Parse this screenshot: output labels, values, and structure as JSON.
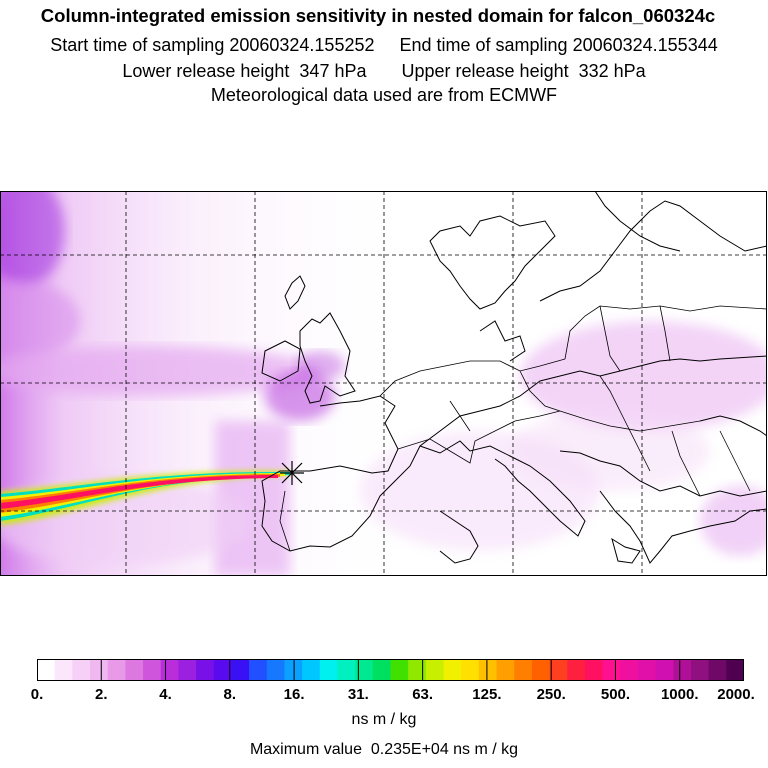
{
  "title": {
    "line1": "Column-integrated emission sensitivity in nested domain for falcon_060324c",
    "line2": "Start time of sampling 20060324.155252     End time of sampling 20060324.155344",
    "line3": "Lower release height  347 hPa       Upper release height  332 hPa",
    "line4": "Meteorological data used are from ECMWF"
  },
  "map": {
    "release_marker": "release-point-x-icon",
    "grid": "dashed-lat-lon-lines",
    "plume_description": "high sensitivity plume extending west from release point over Atlantic"
  },
  "colorbar": {
    "tick_labels": [
      "0.",
      "2.",
      "4.",
      "8.",
      "16.",
      "31.",
      "63.",
      "125.",
      "250.",
      "500.",
      "1000.",
      "2000."
    ],
    "colors": [
      "#ffffff",
      "#fbe6fb",
      "#f6d0f6",
      "#f0b8f0",
      "#e89ae8",
      "#dc78e0",
      "#cf55dd",
      "#b92ddb",
      "#9b20e0",
      "#7a10e8",
      "#5a0aef",
      "#3a10f5",
      "#2050ff",
      "#1678ff",
      "#0aa0ff",
      "#00c8ff",
      "#00f0f0",
      "#00f0c0",
      "#00e890",
      "#00e060",
      "#40e000",
      "#90e800",
      "#c8ee00",
      "#f0f000",
      "#ffe000",
      "#ffc000",
      "#ffa000",
      "#ff8000",
      "#ff6000",
      "#ff4020",
      "#ff2040",
      "#ff1060",
      "#ff1090",
      "#f010a0",
      "#e010a8",
      "#d010b0",
      "#b01098",
      "#901080",
      "#700868",
      "#500050"
    ],
    "units": "ns m / kg",
    "max_value_text": "Maximum value  0.235E+04 ns m / kg"
  }
}
